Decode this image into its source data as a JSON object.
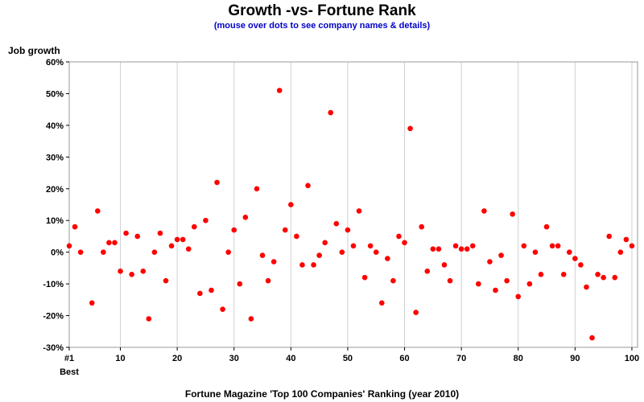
{
  "chart_data": {
    "type": "scatter",
    "title": "Growth -vs- Fortune Rank",
    "subtitle": "(mouse over dots to see company names & details)",
    "ylabel": "Job growth",
    "xlabel": "Fortune Magazine 'Top 100 Companies' Ranking (year 2010)",
    "xlim": [
      1,
      101
    ],
    "ylim": [
      -30,
      60
    ],
    "x_ticks": [
      1,
      10,
      20,
      30,
      40,
      50,
      60,
      70,
      80,
      90,
      100
    ],
    "x_tick_labels": [
      "#1",
      "10",
      "20",
      "30",
      "40",
      "50",
      "60",
      "70",
      "80",
      "90",
      "100"
    ],
    "x_tick_sublabel": "Best",
    "y_ticks": [
      -30,
      -20,
      -10,
      0,
      10,
      20,
      30,
      40,
      50,
      60
    ],
    "y_tick_labels": [
      "-30%",
      "-20%",
      "-10%",
      "0%",
      "10%",
      "20%",
      "30%",
      "40%",
      "50%",
      "60%"
    ],
    "grid": "vertical",
    "point_color": "#ff0000",
    "points": [
      {
        "x": 1,
        "y": 2
      },
      {
        "x": 2,
        "y": 8
      },
      {
        "x": 3,
        "y": 0
      },
      {
        "x": 5,
        "y": -16
      },
      {
        "x": 6,
        "y": 13
      },
      {
        "x": 7,
        "y": 0
      },
      {
        "x": 8,
        "y": 3
      },
      {
        "x": 9,
        "y": 3
      },
      {
        "x": 10,
        "y": -6
      },
      {
        "x": 11,
        "y": 6
      },
      {
        "x": 12,
        "y": -7
      },
      {
        "x": 13,
        "y": 5
      },
      {
        "x": 14,
        "y": -6
      },
      {
        "x": 15,
        "y": -21
      },
      {
        "x": 16,
        "y": 0
      },
      {
        "x": 17,
        "y": 6
      },
      {
        "x": 18,
        "y": -9
      },
      {
        "x": 19,
        "y": 2
      },
      {
        "x": 20,
        "y": 4
      },
      {
        "x": 21,
        "y": 4
      },
      {
        "x": 22,
        "y": 1
      },
      {
        "x": 23,
        "y": 8
      },
      {
        "x": 24,
        "y": -13
      },
      {
        "x": 25,
        "y": 10
      },
      {
        "x": 26,
        "y": -12
      },
      {
        "x": 27,
        "y": 22
      },
      {
        "x": 28,
        "y": -18
      },
      {
        "x": 29,
        "y": 0
      },
      {
        "x": 30,
        "y": 7
      },
      {
        "x": 31,
        "y": -10
      },
      {
        "x": 32,
        "y": 11
      },
      {
        "x": 33,
        "y": -21
      },
      {
        "x": 34,
        "y": 20
      },
      {
        "x": 35,
        "y": -1
      },
      {
        "x": 36,
        "y": -9
      },
      {
        "x": 37,
        "y": -3
      },
      {
        "x": 38,
        "y": 51
      },
      {
        "x": 39,
        "y": 7
      },
      {
        "x": 40,
        "y": 15
      },
      {
        "x": 41,
        "y": 5
      },
      {
        "x": 42,
        "y": -4
      },
      {
        "x": 43,
        "y": 21
      },
      {
        "x": 44,
        "y": -4
      },
      {
        "x": 45,
        "y": -1
      },
      {
        "x": 46,
        "y": 3
      },
      {
        "x": 47,
        "y": 44
      },
      {
        "x": 48,
        "y": 9
      },
      {
        "x": 49,
        "y": 0
      },
      {
        "x": 50,
        "y": 7
      },
      {
        "x": 51,
        "y": 2
      },
      {
        "x": 52,
        "y": 13
      },
      {
        "x": 53,
        "y": -8
      },
      {
        "x": 54,
        "y": 2
      },
      {
        "x": 55,
        "y": 0
      },
      {
        "x": 56,
        "y": -16
      },
      {
        "x": 57,
        "y": -2
      },
      {
        "x": 58,
        "y": -9
      },
      {
        "x": 59,
        "y": 5
      },
      {
        "x": 60,
        "y": 3
      },
      {
        "x": 61,
        "y": 39
      },
      {
        "x": 62,
        "y": -19
      },
      {
        "x": 63,
        "y": 8
      },
      {
        "x": 64,
        "y": -6
      },
      {
        "x": 65,
        "y": 1
      },
      {
        "x": 66,
        "y": 1
      },
      {
        "x": 67,
        "y": -4
      },
      {
        "x": 68,
        "y": -9
      },
      {
        "x": 69,
        "y": 2
      },
      {
        "x": 70,
        "y": 1
      },
      {
        "x": 71,
        "y": 1
      },
      {
        "x": 72,
        "y": 2
      },
      {
        "x": 73,
        "y": -10
      },
      {
        "x": 74,
        "y": 13
      },
      {
        "x": 75,
        "y": -3
      },
      {
        "x": 76,
        "y": -12
      },
      {
        "x": 77,
        "y": -1
      },
      {
        "x": 78,
        "y": -9
      },
      {
        "x": 79,
        "y": 12
      },
      {
        "x": 80,
        "y": -14
      },
      {
        "x": 81,
        "y": 2
      },
      {
        "x": 82,
        "y": -10
      },
      {
        "x": 83,
        "y": 0
      },
      {
        "x": 84,
        "y": -7
      },
      {
        "x": 85,
        "y": 8
      },
      {
        "x": 86,
        "y": 2
      },
      {
        "x": 87,
        "y": 2
      },
      {
        "x": 88,
        "y": -7
      },
      {
        "x": 89,
        "y": 0
      },
      {
        "x": 90,
        "y": -2
      },
      {
        "x": 91,
        "y": -4
      },
      {
        "x": 92,
        "y": -11
      },
      {
        "x": 93,
        "y": -27
      },
      {
        "x": 94,
        "y": -7
      },
      {
        "x": 95,
        "y": -8
      },
      {
        "x": 96,
        "y": 5
      },
      {
        "x": 97,
        "y": -8
      },
      {
        "x": 98,
        "y": 0
      },
      {
        "x": 99,
        "y": 4
      },
      {
        "x": 100,
        "y": 2
      }
    ]
  }
}
